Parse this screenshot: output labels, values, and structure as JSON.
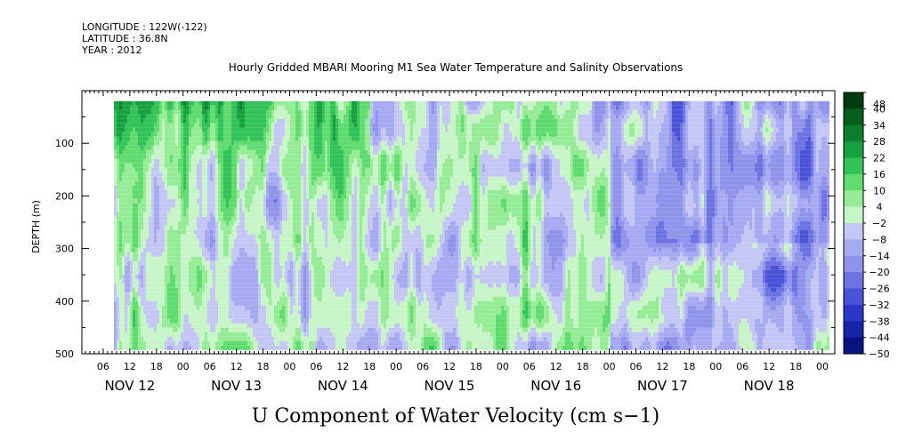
{
  "header": {
    "longitude": "LONGITUDE : 122W(-122)",
    "latitude": "LATITUDE : 36.8N",
    "year": "YEAR : 2012"
  },
  "title": "Hourly Gridded MBARI Mooring M1 Sea Water Temperature and Salinity Observations",
  "footer_title": "U Component of Water Velocity (cm s−1)",
  "chart_data": {
    "type": "heatmap",
    "title": "Hourly Gridded MBARI Mooring M1 Sea Water Temperature and Salinity Observations",
    "xlabel": "",
    "ylabel": "DEPTH (m)",
    "y_reversed": true,
    "ylim": [
      0,
      500
    ],
    "y_ticks": [
      100,
      200,
      300,
      400,
      500
    ],
    "x_hour_ticks": [
      "06",
      "12",
      "18",
      "00",
      "06",
      "12",
      "18",
      "00",
      "06",
      "12",
      "18",
      "00",
      "06",
      "12",
      "18",
      "00",
      "06",
      "12",
      "18",
      "00",
      "06",
      "12",
      "18",
      "00",
      "06",
      "12",
      "18",
      "00"
    ],
    "x_day_labels": [
      "NOV 12",
      "NOV 13",
      "NOV 14",
      "NOV 15",
      "NOV 16",
      "NOV 17",
      "NOV 18"
    ],
    "colorbar": {
      "levels": [
        48,
        40,
        34,
        28,
        22,
        16,
        10,
        4,
        -2,
        -8,
        -14,
        -20,
        -26,
        -32,
        -38,
        -44,
        -50
      ],
      "range": [
        -50,
        48
      ],
      "colors_positive": [
        "#c8f5c8",
        "#96ec96",
        "#5fdb6f",
        "#33c257",
        "#17a040",
        "#0b7f2e",
        "#045e1c",
        "#003a10"
      ],
      "colors_negative": [
        "#c4c6f4",
        "#a6aaf0",
        "#8f93ea",
        "#6c72e2",
        "#4a52d8",
        "#2a36c6",
        "#1624a6",
        "#0a1480",
        "#030a5a"
      ]
    },
    "data_extent": {
      "depth_top": 20,
      "depth_bottom": 485
    },
    "field_summary": {
      "Nov 12-14 upper 200 m": "mostly positive, 10 to 28 cm/s",
      "Nov 12-16 below 200 m": "alternating bands about -14 to +16 cm/s",
      "Nov 17-18": "predominantly negative, -10 to -32 cm/s, with positive patches at 300-480 m"
    }
  }
}
